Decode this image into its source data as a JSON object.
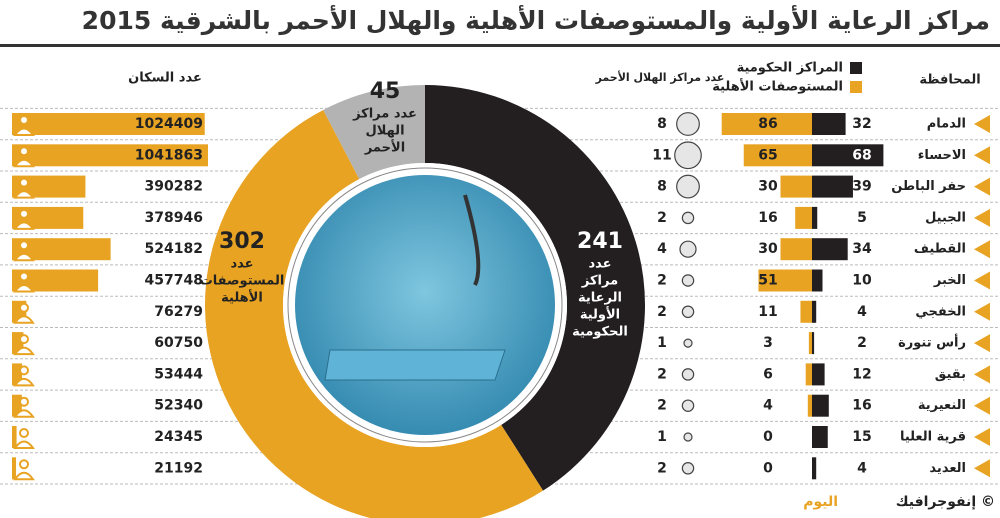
{
  "title": "مراكز الرعاية الأولية والمستوصفات الأهلية والهلال الأحمر بالشرقية 2015",
  "footer": {
    "text": "إنفوجرافيك ©",
    "brand": "اليوم"
  },
  "chart_data": [
    {
      "type": "bar",
      "category_label": "المحافظة",
      "categories": [
        "الدمام",
        "الاحساء",
        "حفر الباطن",
        "الجبيل",
        "القطيف",
        "الخبر",
        "الخفجي",
        "رأس تنورة",
        "بقيق",
        "النعيرية",
        "قرية العليا",
        "العديد"
      ],
      "series": [
        {
          "name": "المراكز الحكومية",
          "color": "#231f20",
          "values": [
            32,
            68,
            39,
            5,
            34,
            10,
            4,
            2,
            12,
            16,
            15,
            4
          ]
        },
        {
          "name": "المستوصفات الأهلية",
          "color": "#e8a323",
          "values": [
            86,
            65,
            30,
            16,
            30,
            51,
            11,
            3,
            6,
            4,
            0,
            0
          ]
        }
      ]
    },
    {
      "type": "bubble",
      "title": "عدد مراكز الهلال الأحمر",
      "color": "#9a9a9a",
      "values": [
        8,
        11,
        8,
        2,
        4,
        2,
        2,
        1,
        2,
        2,
        1,
        2
      ]
    },
    {
      "type": "bar",
      "title": "عدد السكان",
      "color": "#e8a323",
      "values": [
        1024409,
        1041863,
        390282,
        378946,
        524182,
        457748,
        76279,
        60750,
        53444,
        52340,
        24345,
        21192
      ]
    },
    {
      "type": "donut",
      "values": [
        241,
        302,
        45
      ],
      "colors": [
        "#231f20",
        "#e8a323",
        "#b3b3b3"
      ],
      "labels": [
        [
          "عدد",
          "مراكز",
          "الرعاية",
          "الأولية",
          "الحكومية"
        ],
        [
          "عدد",
          "المستوصفات",
          "الأهلية"
        ],
        [
          "عدد مراكز",
          "الهلال",
          "الأحمر"
        ]
      ]
    }
  ]
}
